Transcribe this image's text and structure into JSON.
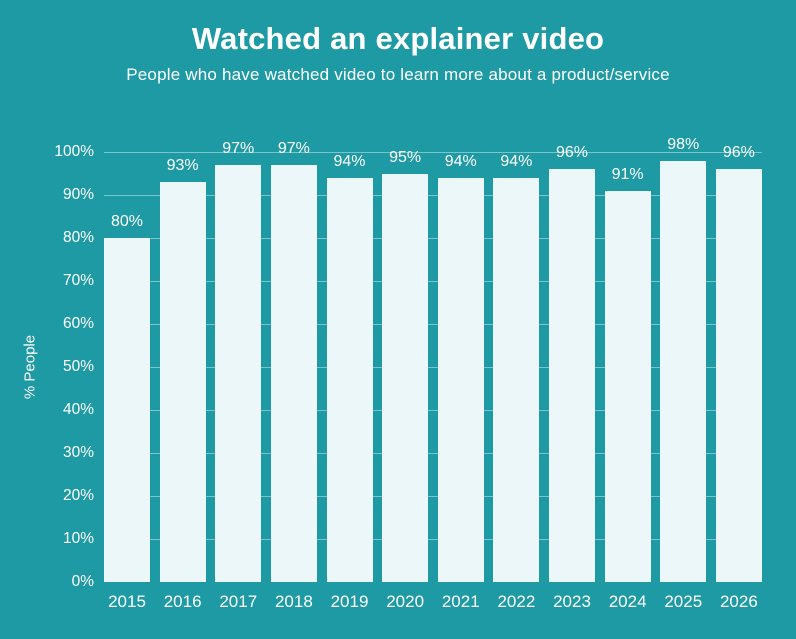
{
  "header": {
    "title": "Watched an explainer video",
    "subtitle": "People who have watched video to learn more about a product/service"
  },
  "chart_data": {
    "type": "bar",
    "title": "Watched an explainer video",
    "subtitle": "People who have watched video to learn more about a product/service",
    "categories": [
      "2015",
      "2016",
      "2017",
      "2018",
      "2019",
      "2020",
      "2021",
      "2022",
      "2023",
      "2024",
      "2025",
      "2026"
    ],
    "values": [
      80,
      93,
      97,
      97,
      94,
      95,
      94,
      94,
      96,
      91,
      98,
      96
    ],
    "value_label_suffix": "%",
    "xlabel": "",
    "ylabel": "% People",
    "ylim": [
      0,
      100
    ],
    "yticks": [
      0,
      10,
      20,
      30,
      40,
      50,
      60,
      70,
      80,
      90,
      100
    ],
    "ytick_suffix": "%",
    "grid": true,
    "legend": false,
    "colors": {
      "background": "#1E9AA5",
      "bar_fill": "#EBF7F8",
      "grid_line": "rgba(255,255,255,0.42)",
      "text": "#FFFFFF"
    }
  }
}
